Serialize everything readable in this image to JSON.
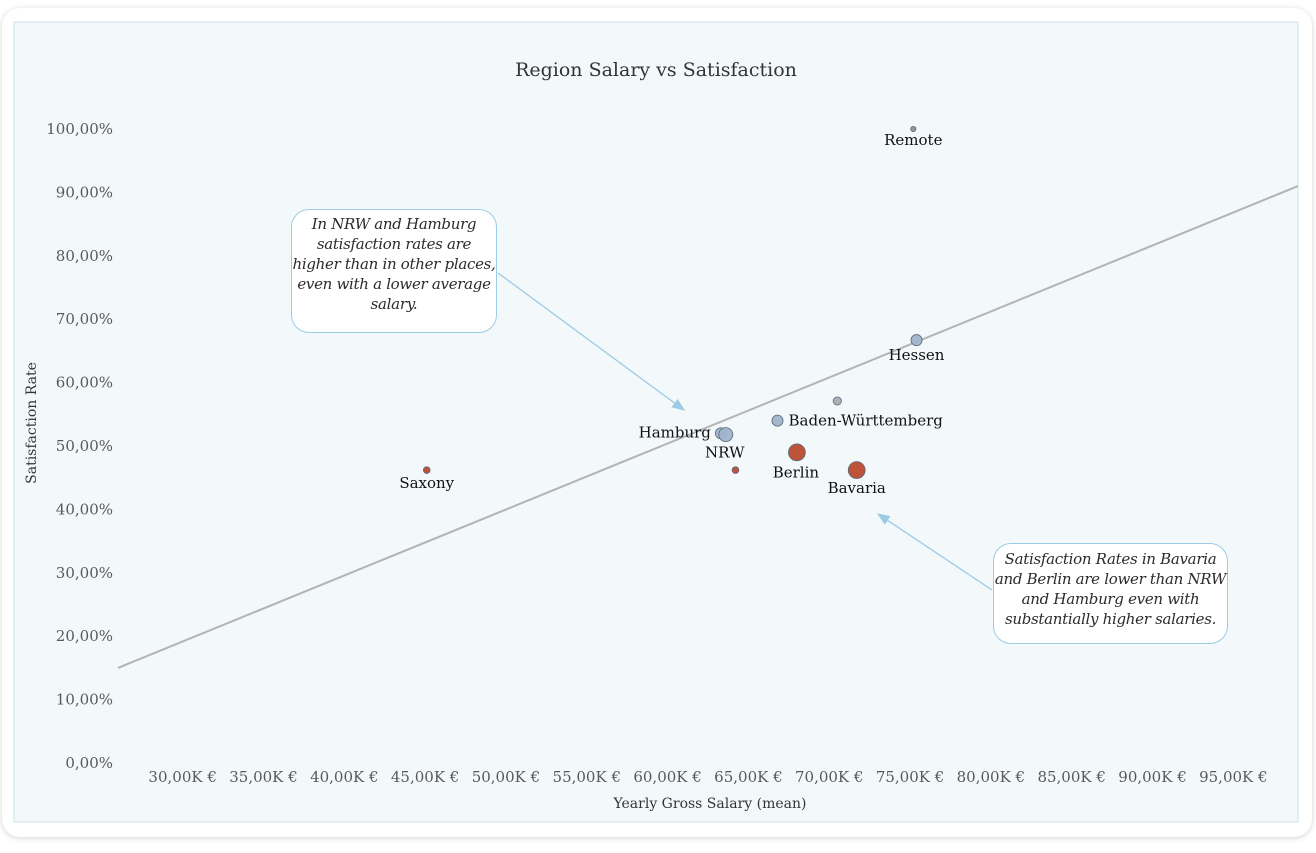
{
  "chart_data": {
    "type": "scatter",
    "title": "Region Salary vs Satisfaction",
    "xlabel": "Yearly Gross Salary (mean)",
    "ylabel": "Satisfaction Rate",
    "xlim": [
      26000,
      99000
    ],
    "ylim": [
      0,
      1.03
    ],
    "x_ticks": [
      30000,
      35000,
      40000,
      45000,
      50000,
      55000,
      60000,
      65000,
      70000,
      75000,
      80000,
      85000,
      90000,
      95000
    ],
    "x_tick_labels": [
      "30,00K €",
      "35,00K €",
      "40,00K €",
      "45,00K €",
      "50,00K €",
      "55,00K €",
      "60,00K €",
      "65,00K €",
      "70,00K €",
      "75,00K €",
      "80,00K €",
      "85,00K €",
      "90,00K €",
      "95,00K €"
    ],
    "y_ticks": [
      0,
      0.1,
      0.2,
      0.3,
      0.4,
      0.5,
      0.6,
      0.7,
      0.8,
      0.9,
      1.0
    ],
    "y_tick_labels": [
      "0,00%",
      "10,00%",
      "20,00%",
      "30,00%",
      "40,00%",
      "50,00%",
      "60,00%",
      "70,00%",
      "80,00%",
      "90,00%",
      "100,00%"
    ],
    "grid": false,
    "points": [
      {
        "label": "Remote",
        "x": 75200,
        "y": 1.0,
        "size": 1,
        "color": "#8a8f99"
      },
      {
        "label": "Hessen",
        "x": 75400,
        "y": 0.667,
        "size": 3,
        "color": "#9fb4cc"
      },
      {
        "label": "",
        "x": 70500,
        "y": 0.571,
        "size": 2,
        "color": "#a6adb6"
      },
      {
        "label": "Baden-Württemberg",
        "x": 66800,
        "y": 0.54,
        "size": 3,
        "color": "#9fb4cc"
      },
      {
        "label": "Hamburg",
        "x": 63300,
        "y": 0.52,
        "size": 3,
        "color": "#9fb4cc"
      },
      {
        "label": "NRW",
        "x": 63600,
        "y": 0.518,
        "size": 4,
        "color": "#9fb4cc"
      },
      {
        "label": "Berlin",
        "x": 68000,
        "y": 0.49,
        "size": 5,
        "color": "#b94a2e"
      },
      {
        "label": "Bavaria",
        "x": 71700,
        "y": 0.462,
        "size": 5,
        "color": "#b94a2e"
      },
      {
        "label": "",
        "x": 64200,
        "y": 0.462,
        "size": 1.5,
        "color": "#b94a2e"
      },
      {
        "label": "Saxony",
        "x": 45100,
        "y": 0.462,
        "size": 1.5,
        "color": "#b94a2e"
      }
    ],
    "trendline": {
      "x": [
        26000,
        99000
      ],
      "y": [
        0.15,
        0.91
      ],
      "color": "#b3b3b3"
    },
    "annotations": [
      {
        "text": "In NRW and Hamburg satisfaction rates are higher than in other places, even with a lower average salary.",
        "lines": [
          "In NRW and Hamburg",
          "satisfaction rates are",
          "higher than in other places,",
          "even with a lower average",
          "salary."
        ]
      },
      {
        "text": "Satisfaction Rates in Bavaria and Berlin are lower than NRW and Hamburg even with substantially higher salaries.",
        "lines": [
          "Satisfaction Rates in Bavaria",
          "and Berlin are lower than NRW",
          "and Hamburg even with",
          "substantially higher salaries."
        ]
      }
    ]
  }
}
